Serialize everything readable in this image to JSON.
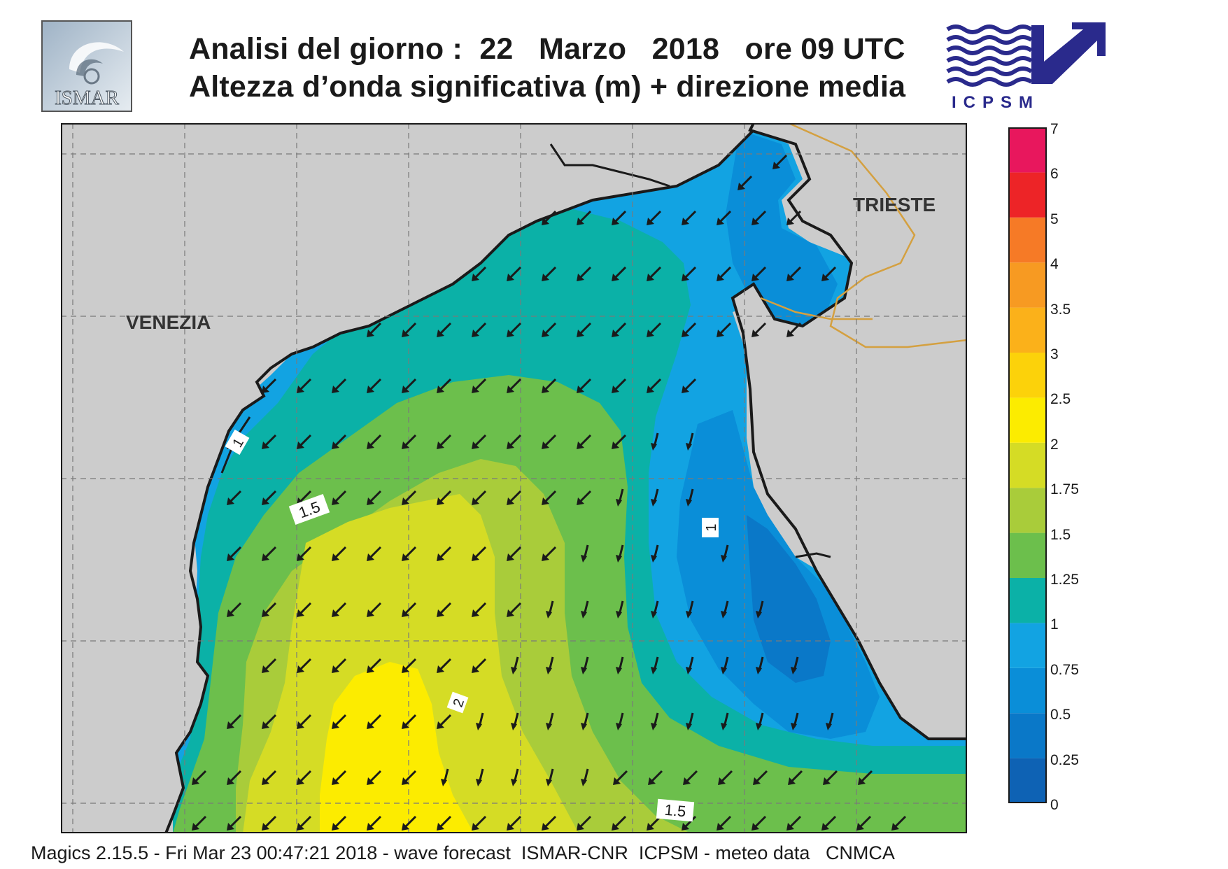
{
  "header": {
    "title_line1": "Analisi del giorno :  22   Marzo   2018   ore 09 UTC",
    "title_line2": "Altezza d’onda significativa (m) + direzione media"
  },
  "logos": {
    "left": {
      "text": "ISMAR",
      "icon": "ismar-logo-icon"
    },
    "right": {
      "text": "ICPSM",
      "icon": "icpsm-logo-icon",
      "color": "#2a2a8c"
    }
  },
  "map": {
    "place_labels": [
      "VENEZIA",
      "TRIESTE"
    ],
    "contour_labels": [
      "1",
      "1.5",
      "1",
      "2",
      "1.5"
    ]
  },
  "legend": {
    "title": "",
    "ticks": [
      "7",
      "6",
      "5",
      "4",
      "3.5",
      "3",
      "2.5",
      "2",
      "1.75",
      "1.5",
      "1.25",
      "1",
      "0.75",
      "0.5",
      "0.25",
      "0"
    ],
    "colors": [
      "#0e62b4",
      "#0a78c8",
      "#0a8ed8",
      "#12a3e2",
      "#0bb1a7",
      "#6cbf4c",
      "#a9cc3a",
      "#d5dc25",
      "#fcec00",
      "#fcd20a",
      "#fbb11a",
      "#f79a22",
      "#f67a26",
      "#ed2427",
      "#e8175d"
    ]
  },
  "footer": {
    "text": "Magics 2.15.5 - Fri Mar 23 00:47:21 2018 - wave forecast  ISMAR-CNR  ICPSM - meteo data   CNMCA"
  }
}
